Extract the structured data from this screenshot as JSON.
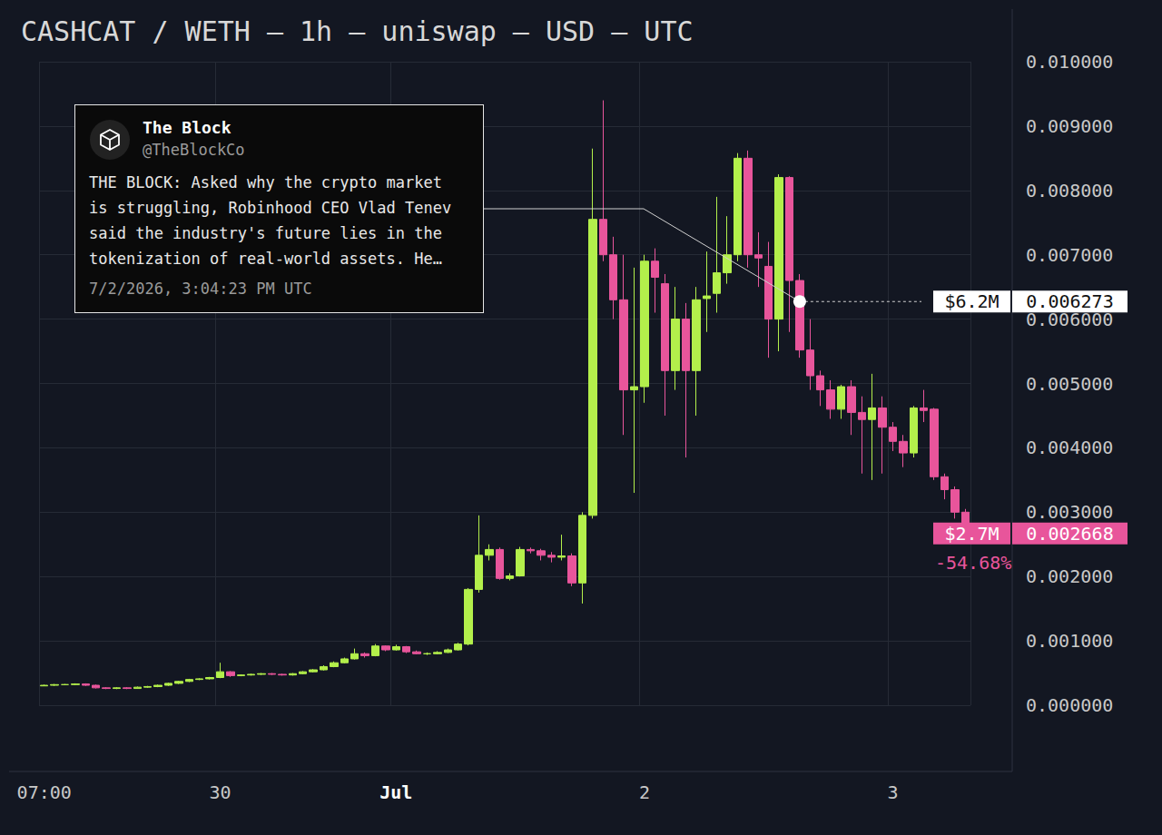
{
  "chart_data": {
    "type": "candlestick",
    "title": "CASHCAT / WETH — 1h — uniswap — USD — UTC",
    "categories": [
      "07:00",
      null,
      null,
      null,
      null,
      null,
      null,
      null,
      null,
      null,
      null,
      null,
      null,
      null,
      null,
      null,
      null,
      "30",
      null,
      null,
      null,
      null,
      null,
      null,
      null,
      null,
      null,
      null,
      null,
      null,
      null,
      null,
      null,
      null,
      "Jul",
      null,
      null,
      null,
      null,
      null,
      null,
      null,
      null,
      null,
      null,
      null,
      null,
      null,
      null,
      null,
      null,
      null,
      null,
      null,
      null,
      null,
      null,
      null,
      "2",
      null,
      null,
      null,
      null,
      null,
      null,
      null,
      null,
      null,
      null,
      null,
      null,
      null,
      null,
      null,
      null,
      null,
      null,
      null,
      null,
      null,
      null,
      null,
      "3",
      null,
      null,
      null,
      null,
      null,
      null,
      null
    ],
    "open": [
      0.0003,
      0.00031,
      0.00032,
      0.00032,
      0.00033,
      0.00031,
      0.00027,
      0.00026,
      0.00027,
      0.00026,
      0.00028,
      0.00029,
      0.00031,
      0.00034,
      0.00037,
      0.0004,
      0.00041,
      0.00043,
      0.00052,
      0.00046,
      0.00047,
      0.00048,
      0.00049,
      0.00048,
      0.00047,
      0.00049,
      0.00052,
      0.00055,
      0.0006,
      0.00066,
      0.00072,
      0.0008,
      0.00077,
      0.00092,
      0.00086,
      0.00091,
      0.00083,
      0.0008,
      0.0008,
      0.00082,
      0.00086,
      0.00095,
      0.0018,
      0.00233,
      0.00242,
      0.00197,
      0.00201,
      0.00242,
      0.0024,
      0.00233,
      0.0023,
      0.00232,
      0.0019,
      0.00295,
      0.00755,
      0.007,
      0.0063,
      0.0049,
      0.00495,
      0.0069,
      0.00655,
      0.0052,
      0.006,
      0.0052,
      0.00632,
      0.0064,
      0.00672,
      0.007,
      0.0085,
      0.007,
      0.00682,
      0.006,
      0.0082,
      0.0066,
      0.00552,
      0.00512,
      0.0049,
      0.0046,
      0.00495,
      0.00455,
      0.00444,
      0.00462,
      0.00432,
      0.0041,
      0.00392,
      0.00462,
      0.0046,
      0.00355,
      0.00335,
      0.003
    ],
    "high": [
      0.00032,
      0.00033,
      0.00033,
      0.00034,
      0.00034,
      0.00032,
      0.00028,
      0.00028,
      0.00028,
      0.00029,
      0.0003,
      0.00032,
      0.00035,
      0.00038,
      0.00041,
      0.00042,
      0.00044,
      0.00066,
      0.00053,
      0.00048,
      0.00049,
      0.0005,
      0.0005,
      0.00049,
      0.0005,
      0.00053,
      0.00056,
      0.00062,
      0.00068,
      0.00074,
      0.00088,
      0.00082,
      0.00095,
      0.00093,
      0.00094,
      0.00092,
      0.00085,
      0.00082,
      0.00084,
      0.00088,
      0.00097,
      0.00182,
      0.00295,
      0.0025,
      0.00245,
      0.00205,
      0.00246,
      0.00245,
      0.00243,
      0.00238,
      0.00265,
      0.00236,
      0.003,
      0.00865,
      0.0094,
      0.00728,
      0.007,
      0.0068,
      0.007,
      0.0071,
      0.0067,
      0.0065,
      0.00625,
      0.0065,
      0.00705,
      0.0079,
      0.0076,
      0.00858,
      0.00862,
      0.00735,
      0.0072,
      0.00825,
      0.00822,
      0.0067,
      0.006,
      0.0052,
      0.00505,
      0.00498,
      0.00505,
      0.0048,
      0.00515,
      0.0048,
      0.0044,
      0.0042,
      0.00465,
      0.0049,
      0.00462,
      0.0036,
      0.0034,
      0.00305
    ],
    "low": [
      0.0003,
      0.0003,
      0.00031,
      0.00031,
      0.0003,
      0.00026,
      0.00025,
      0.00025,
      0.00025,
      0.00026,
      0.00027,
      0.00028,
      0.0003,
      0.00033,
      0.00036,
      0.00039,
      0.0004,
      0.00042,
      0.00044,
      0.00045,
      0.00046,
      0.00047,
      0.00047,
      0.00046,
      0.00046,
      0.00048,
      0.00051,
      0.00054,
      0.00059,
      0.00065,
      0.00071,
      0.00074,
      0.00076,
      0.00084,
      0.00085,
      0.00081,
      0.00079,
      0.00078,
      0.00079,
      0.00081,
      0.00085,
      0.00093,
      0.00175,
      0.00225,
      0.00195,
      0.00194,
      0.002,
      0.00236,
      0.00225,
      0.00222,
      0.00225,
      0.00185,
      0.00158,
      0.0029,
      0.0069,
      0.006,
      0.0042,
      0.0033,
      0.0047,
      0.0061,
      0.0045,
      0.0049,
      0.00385,
      0.0045,
      0.0058,
      0.0061,
      0.00655,
      0.0069,
      0.0068,
      0.0065,
      0.0054,
      0.0055,
      0.0058,
      0.0054,
      0.0049,
      0.00465,
      0.00445,
      0.00445,
      0.0042,
      0.0036,
      0.0035,
      0.0036,
      0.00395,
      0.0037,
      0.00385,
      0.0044,
      0.0035,
      0.0032,
      0.0029,
      0.0026
    ],
    "close": [
      0.00031,
      0.00032,
      0.00032,
      0.00033,
      0.00031,
      0.00027,
      0.00026,
      0.00027,
      0.00026,
      0.00028,
      0.00029,
      0.00031,
      0.00034,
      0.00037,
      0.0004,
      0.00041,
      0.00043,
      0.00052,
      0.00046,
      0.00047,
      0.00048,
      0.00049,
      0.00048,
      0.00047,
      0.00049,
      0.00052,
      0.00055,
      0.0006,
      0.00066,
      0.00072,
      0.0008,
      0.00077,
      0.00092,
      0.00086,
      0.00091,
      0.00083,
      0.0008,
      0.0008,
      0.00082,
      0.00086,
      0.00095,
      0.0018,
      0.00233,
      0.00242,
      0.00197,
      0.00201,
      0.00242,
      0.0024,
      0.00233,
      0.0023,
      0.00232,
      0.0019,
      0.00295,
      0.00755,
      0.007,
      0.0063,
      0.0049,
      0.00495,
      0.0069,
      0.00665,
      0.0052,
      0.006,
      0.0052,
      0.0063,
      0.00636,
      0.00672,
      0.007,
      0.0085,
      0.007,
      0.00695,
      0.006,
      0.0082,
      0.0066,
      0.00552,
      0.00512,
      0.0049,
      0.0046,
      0.00495,
      0.00455,
      0.00444,
      0.00462,
      0.00432,
      0.0041,
      0.00392,
      0.00462,
      0.00458,
      0.00355,
      0.00335,
      0.003,
      0.002668
    ],
    "color": {
      "up": "#b3ef4b",
      "down": "#e8559b"
    },
    "ylim": [
      0,
      0.01
    ],
    "yticks": [
      {
        "value": 0,
        "label": "0.000000"
      },
      {
        "value": 0.001,
        "label": "0.001000"
      },
      {
        "value": 0.002,
        "label": "0.002000"
      },
      {
        "value": 0.003,
        "label": "0.003000"
      },
      {
        "value": 0.004,
        "label": "0.004000"
      },
      {
        "value": 0.005,
        "label": "0.005000"
      },
      {
        "value": 0.006,
        "label": "0.006000"
      },
      {
        "value": 0.007,
        "label": "0.007000"
      },
      {
        "value": 0.008,
        "label": "0.008000"
      },
      {
        "value": 0.009,
        "label": "0.009000"
      },
      {
        "value": 0.01,
        "label": "0.010000"
      }
    ],
    "grid": true,
    "annotations": [
      {
        "author": "The Block",
        "handle": "@TheBlockCo",
        "text": "THE BLOCK: Asked why the crypto market is struggling, Robinhood CEO Vlad Tenev said the industry's future lies in the tokenization of real-world assets. He…",
        "time": "7/2/2026, 3:04:23 PM UTC",
        "x_index": 73,
        "y": 0.006273,
        "label": "0.006273",
        "market_cap": "$6.2M"
      }
    ],
    "last_price": {
      "x_index": 89,
      "value": 0.002668,
      "label": "0.002668",
      "market_cap": "$2.7M",
      "change": -54.68,
      "change_label": "-54.68%"
    }
  }
}
